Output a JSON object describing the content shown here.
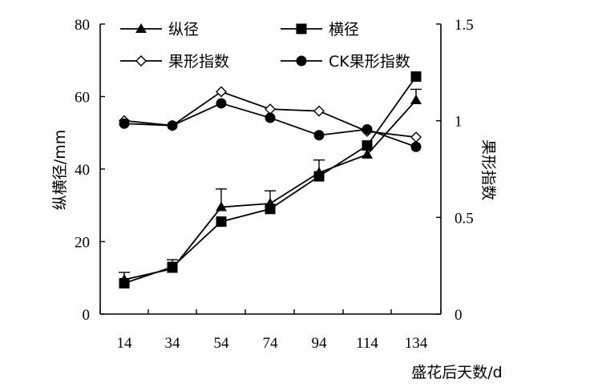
{
  "chart_data": {
    "type": "line",
    "xlabel": "盛花后天数/d",
    "ylabel_left": "纵横径/mm",
    "ylabel_right": "果形指数",
    "x": [
      14,
      34,
      54,
      74,
      94,
      114,
      134
    ],
    "x_ticks": [
      "14",
      "34",
      "54",
      "74",
      "94",
      "114",
      "134"
    ],
    "ylim_left": [
      0,
      80
    ],
    "yticks_left": [
      "0",
      "20",
      "40",
      "60",
      "80"
    ],
    "ylim_right": [
      0,
      1.5
    ],
    "yticks_right": [
      "0",
      "0.5",
      "1",
      "1.5"
    ],
    "grid": false,
    "legend_placement": "top",
    "series": [
      {
        "name": "纵径",
        "axis": "left",
        "marker": "triangle",
        "values": [
          9.5,
          12.5,
          29.5,
          30.5,
          39,
          44,
          59
        ],
        "errors": [
          2,
          2.5,
          5,
          3.5,
          3.5,
          1.5,
          3
        ]
      },
      {
        "name": "横径",
        "axis": "left",
        "marker": "square",
        "values": [
          8.5,
          13,
          25.5,
          29,
          38,
          46.5,
          65.5
        ],
        "errors": [
          0,
          0,
          0,
          0,
          0,
          0,
          0
        ]
      },
      {
        "name": "果形指数",
        "axis": "right",
        "marker": "diamond-open",
        "values": [
          1.0,
          0.975,
          1.15,
          1.06,
          1.05,
          0.945,
          0.915
        ]
      },
      {
        "name": "CK果形指数",
        "axis": "right",
        "marker": "circle",
        "values": [
          0.985,
          0.975,
          1.09,
          1.015,
          0.925,
          0.955,
          0.865
        ]
      }
    ]
  }
}
